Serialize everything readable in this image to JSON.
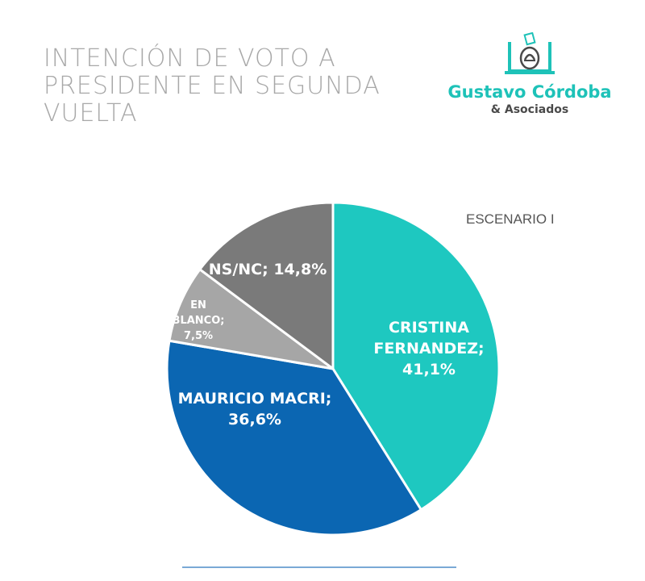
{
  "title": "INTENCIÓN DE VOTO A PRESIDENTE EN SEGUNDA VUELTA",
  "logo": {
    "name": "Gustavo Córdoba",
    "subtitle": "& Asociados",
    "icon": "ballot-box-icon"
  },
  "scenario_label": "ESCENARIO I",
  "colors": {
    "cristina": "#1ec8c0",
    "macri": "#0b66b2",
    "blanco": "#a6a6a6",
    "nsnc": "#7a7a7a",
    "title": "#a8a8a8",
    "brand": "#1ec2b8"
  },
  "chart_data": {
    "type": "pie",
    "title": "INTENCIÓN DE VOTO A PRESIDENTE EN SEGUNDA VUELTA",
    "subtitle": "ESCENARIO I",
    "slices": [
      {
        "name": "CRISTINA FERNANDEZ",
        "value": 41.1,
        "label_lines": [
          "CRISTINA",
          "FERNANDEZ;",
          "41,1%"
        ],
        "color": "#1ec8c0",
        "label_color": "#ffffff"
      },
      {
        "name": "MAURICIO MACRI",
        "value": 36.6,
        "label_lines": [
          "MAURICIO MACRI;",
          "36,6%"
        ],
        "color": "#0b66b2",
        "label_color": "#ffffff"
      },
      {
        "name": "EN BLANCO",
        "value": 7.5,
        "label_lines": [
          "EN",
          "BLANCO;",
          "7,5%"
        ],
        "color": "#a6a6a6",
        "label_color": "#ffffff"
      },
      {
        "name": "NS/NC",
        "value": 14.8,
        "label_lines": [
          "NS/NC; 14,8%"
        ],
        "color": "#7a7a7a",
        "label_color": "#ffffff"
      }
    ],
    "start": "12 o'clock",
    "direction": "clockwise"
  }
}
